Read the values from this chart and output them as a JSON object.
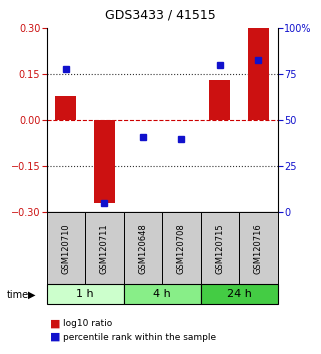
{
  "title": "GDS3433 / 41515",
  "samples": [
    "GSM120710",
    "GSM120711",
    "GSM120648",
    "GSM120708",
    "GSM120715",
    "GSM120716"
  ],
  "log10_ratio": [
    0.08,
    -0.27,
    0.0,
    0.0,
    0.13,
    0.3
  ],
  "percentile_rank": [
    78,
    5,
    41,
    40,
    80,
    83
  ],
  "groups": [
    {
      "label": "1 h",
      "samples": [
        0,
        1
      ],
      "color": "#ccffcc"
    },
    {
      "label": "4 h",
      "samples": [
        2,
        3
      ],
      "color": "#88ee88"
    },
    {
      "label": "24 h",
      "samples": [
        4,
        5
      ],
      "color": "#44cc44"
    }
  ],
  "ylim": [
    -0.3,
    0.3
  ],
  "yticks_left": [
    -0.3,
    -0.15,
    0.0,
    0.15,
    0.3
  ],
  "yticks_right": [
    0,
    25,
    50,
    75,
    100
  ],
  "bar_color": "#cc1111",
  "dot_color": "#1111cc",
  "hline_color": "#cc0000",
  "dotted_color": "#333333",
  "bg_labels": "#cccccc",
  "bg_group_1h": "#ccffcc",
  "bg_group_4h": "#88ee88",
  "bg_group_24h": "#44cc44"
}
